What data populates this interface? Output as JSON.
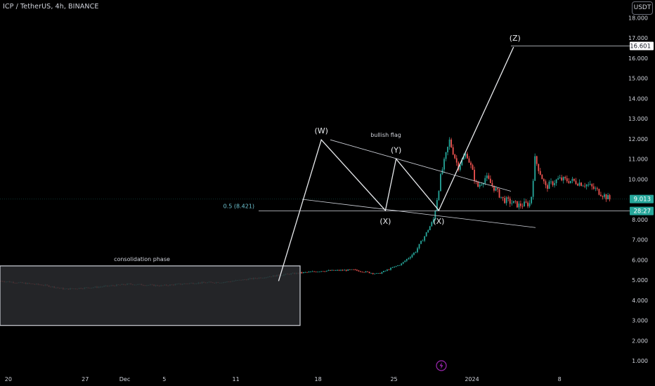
{
  "header": {
    "symbol": "ICP / TetherUS, 4h, BINANCE",
    "currency": "USDT"
  },
  "chart_data": {
    "type": "candlestick",
    "title": "ICP / TetherUS, 4h, BINANCE",
    "ylim": [
      0.6,
      18.6
    ],
    "y_ticks": [
      "1.000",
      "2.000",
      "3.000",
      "4.000",
      "5.000",
      "6.000",
      "7.000",
      "8.000",
      "10.000",
      "11.000",
      "12.000",
      "13.000",
      "14.000",
      "15.000",
      "16.000",
      "17.000",
      "18.000"
    ],
    "x_ticks": [
      "20",
      "27",
      "Dec",
      "5",
      "11",
      "18",
      "25",
      "2024",
      "8"
    ],
    "price_labels": [
      {
        "value": 16.601,
        "text": "16.601",
        "fill": "#ffffff",
        "color": "#131722"
      },
      {
        "value": 9.013,
        "text": "9.013",
        "fill": "#26a69a",
        "color": "#ffffff"
      },
      {
        "value": 8.421,
        "text": "28:27",
        "fill": "#26a69a",
        "color": "#ffffff"
      }
    ],
    "fib_label": "0.5 (8.421)",
    "fib_level": 8.421,
    "target_level": 16.601,
    "current_price": 9.013,
    "consolidation": {
      "label": "consolidation phase",
      "top": 5.7,
      "bottom": 2.75
    },
    "wave_points": [
      {
        "label": "",
        "date": "Dec 12",
        "price": 4.95
      },
      {
        "label": "(W)",
        "date": "Dec 16",
        "price": 11.95
      },
      {
        "label": "(X)",
        "date": "Dec 22",
        "price": 8.45
      },
      {
        "label": "(Y)",
        "date": "Dec 23",
        "price": 11.0
      },
      {
        "label": "(X)",
        "date": "Dec 27",
        "price": 8.45
      },
      {
        "label": "(Z)",
        "date": "Jan 3",
        "price": 16.55
      }
    ],
    "annotations": {
      "flag": "bullish flag"
    },
    "up_color": "#26a69a",
    "down_color": "#ef5350",
    "background": "#000000",
    "grid": false
  }
}
